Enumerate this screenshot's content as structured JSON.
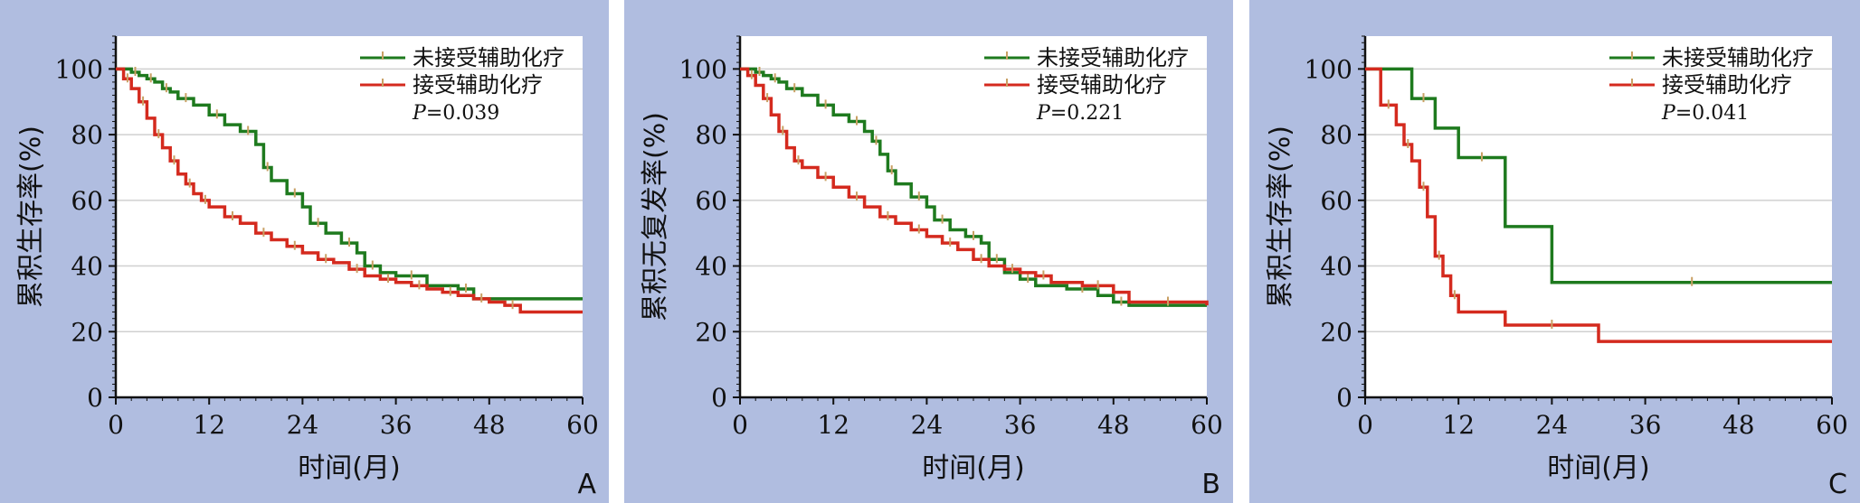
{
  "chart_data": [
    {
      "type": "line",
      "panel_label": "A",
      "xlabel": "时间(月)",
      "ylabel": "累积生存率(%)",
      "xlim": [
        0,
        60
      ],
      "ylim": [
        0,
        110
      ],
      "xticks": [
        0,
        12,
        24,
        36,
        48,
        60
      ],
      "yticks": [
        0,
        20,
        40,
        60,
        80,
        100
      ],
      "grid": "horizontal",
      "legend_position": "top-right",
      "p_value": {
        "label": "P",
        "text": "=0.039"
      },
      "series": [
        {
          "name": "未接受辅助化疗",
          "color": "#1e7a1e",
          "x": [
            0,
            2,
            3,
            4,
            5,
            6,
            7,
            8,
            10,
            12,
            14,
            16,
            18,
            19,
            20,
            22,
            24,
            25,
            27,
            29,
            31,
            32,
            34,
            36,
            40,
            44,
            46,
            60
          ],
          "y": [
            100,
            99,
            98,
            97,
            96,
            94,
            93,
            91,
            89,
            86,
            83,
            81,
            77,
            70,
            66,
            62,
            58,
            53,
            50,
            47,
            44,
            40,
            38,
            37,
            34,
            33,
            30,
            30
          ]
        },
        {
          "name": "接受辅助化疗",
          "color": "#d42a1e",
          "x": [
            0,
            1,
            2,
            3,
            4,
            5,
            6,
            7,
            8,
            9,
            10,
            11,
            12,
            14,
            16,
            18,
            20,
            22,
            24,
            26,
            28,
            30,
            32,
            34,
            36,
            38,
            40,
            42,
            44,
            46,
            48,
            50,
            52,
            60
          ],
          "y": [
            100,
            97,
            94,
            90,
            85,
            80,
            76,
            72,
            68,
            65,
            62,
            60,
            58,
            55,
            53,
            50,
            48,
            46,
            44,
            42,
            41,
            39,
            37,
            36,
            35,
            34,
            33,
            32,
            31,
            30,
            29,
            28,
            26,
            26
          ]
        }
      ]
    },
    {
      "type": "line",
      "panel_label": "B",
      "xlabel": "时间(月)",
      "ylabel": "累积无复发率(%)",
      "xlim": [
        0,
        60
      ],
      "ylim": [
        0,
        110
      ],
      "xticks": [
        0,
        12,
        24,
        36,
        48,
        60
      ],
      "yticks": [
        0,
        20,
        40,
        60,
        80,
        100
      ],
      "grid": "horizontal",
      "legend_position": "top-right",
      "p_value": {
        "label": "P",
        "text": "=0.221"
      },
      "series": [
        {
          "name": "未接受辅助化疗",
          "color": "#1e7a1e",
          "x": [
            0,
            2,
            3,
            4,
            5,
            6,
            8,
            10,
            12,
            14,
            16,
            17,
            18,
            19,
            20,
            22,
            24,
            25,
            27,
            29,
            31,
            32,
            34,
            36,
            38,
            42,
            46,
            48,
            50,
            60
          ],
          "y": [
            100,
            99,
            98,
            97,
            96,
            94,
            92,
            89,
            86,
            84,
            81,
            78,
            74,
            69,
            65,
            61,
            58,
            54,
            51,
            49,
            47,
            42,
            38,
            36,
            34,
            33,
            31,
            29,
            28,
            28
          ]
        },
        {
          "name": "接受辅助化疗",
          "color": "#d42a1e",
          "x": [
            0,
            1,
            2,
            3,
            4,
            5,
            6,
            7,
            8,
            10,
            12,
            14,
            16,
            18,
            20,
            22,
            24,
            26,
            28,
            30,
            32,
            34,
            36,
            38,
            40,
            44,
            48,
            50,
            60
          ],
          "y": [
            100,
            98,
            95,
            91,
            86,
            81,
            76,
            72,
            70,
            67,
            64,
            61,
            58,
            55,
            53,
            51,
            49,
            47,
            45,
            42,
            40,
            39,
            38,
            37,
            35,
            34,
            32,
            29,
            28
          ]
        }
      ]
    },
    {
      "type": "line",
      "panel_label": "C",
      "xlabel": "时间(月)",
      "ylabel": "累积生存率(%)",
      "xlim": [
        0,
        60
      ],
      "ylim": [
        0,
        110
      ],
      "xticks": [
        0,
        12,
        24,
        36,
        48,
        60
      ],
      "yticks": [
        0,
        20,
        40,
        60,
        80,
        100
      ],
      "grid": "horizontal",
      "legend_position": "top-right",
      "p_value": {
        "label": "P",
        "text": "=0.041"
      },
      "series": [
        {
          "name": "未接受辅助化疗",
          "color": "#1e7a1e",
          "x": [
            0,
            6,
            9,
            12,
            18,
            24,
            60
          ],
          "y": [
            100,
            91,
            82,
            73,
            52,
            35,
            35
          ]
        },
        {
          "name": "接受辅助化疗",
          "color": "#d42a1e",
          "x": [
            0,
            2,
            4,
            5,
            6,
            7,
            8,
            9,
            10,
            11,
            12,
            18,
            30,
            60
          ],
          "y": [
            100,
            89,
            83,
            77,
            72,
            64,
            55,
            43,
            37,
            31,
            26,
            22,
            17,
            17
          ]
        }
      ]
    }
  ]
}
